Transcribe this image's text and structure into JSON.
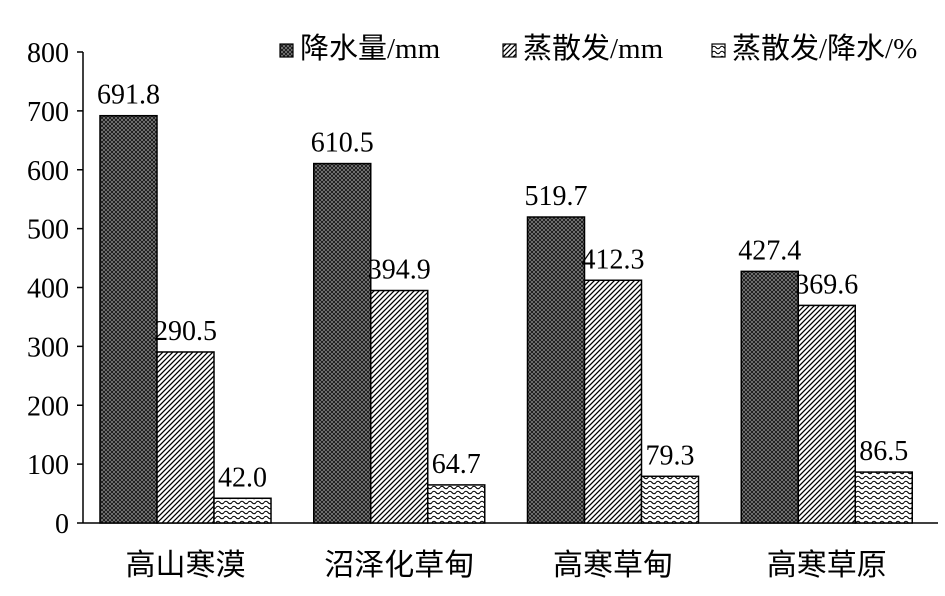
{
  "chart_data": {
    "type": "bar",
    "title": "",
    "xlabel": "",
    "ylabel": "",
    "categories": [
      "高山寒漠",
      "沼泽化草甸",
      "高寒草甸",
      "高寒草原"
    ],
    "series": [
      {
        "name": "降水量/mm",
        "values": [
          691.8,
          610.5,
          519.7,
          427.4
        ],
        "pattern": "dark-crosshatch"
      },
      {
        "name": "蒸散发/mm",
        "values": [
          290.5,
          394.9,
          412.3,
          369.6
        ],
        "pattern": "diagonal-hatch"
      },
      {
        "name": "蒸散发/降水/%",
        "values": [
          42.0,
          64.7,
          79.3,
          86.5
        ],
        "pattern": "wave"
      }
    ],
    "data_labels": [
      [
        "691.8",
        "610.5",
        "519.7",
        "427.4"
      ],
      [
        "290.5",
        "394.9",
        "412.3",
        "369.6"
      ],
      [
        "42.0",
        "64.7",
        "79.3",
        "86.5"
      ]
    ],
    "ylim": [
      0,
      800
    ],
    "yticks": [
      0,
      100,
      200,
      300,
      400,
      500,
      600,
      700,
      800
    ],
    "ytick_labels": [
      "0",
      "100",
      "200",
      "300",
      "400",
      "500",
      "600",
      "700",
      "800"
    ],
    "grid": false,
    "legend_position": "top-right",
    "colors": {
      "bar_stroke": "#000000",
      "axis": "#000000",
      "background": "#ffffff"
    }
  }
}
